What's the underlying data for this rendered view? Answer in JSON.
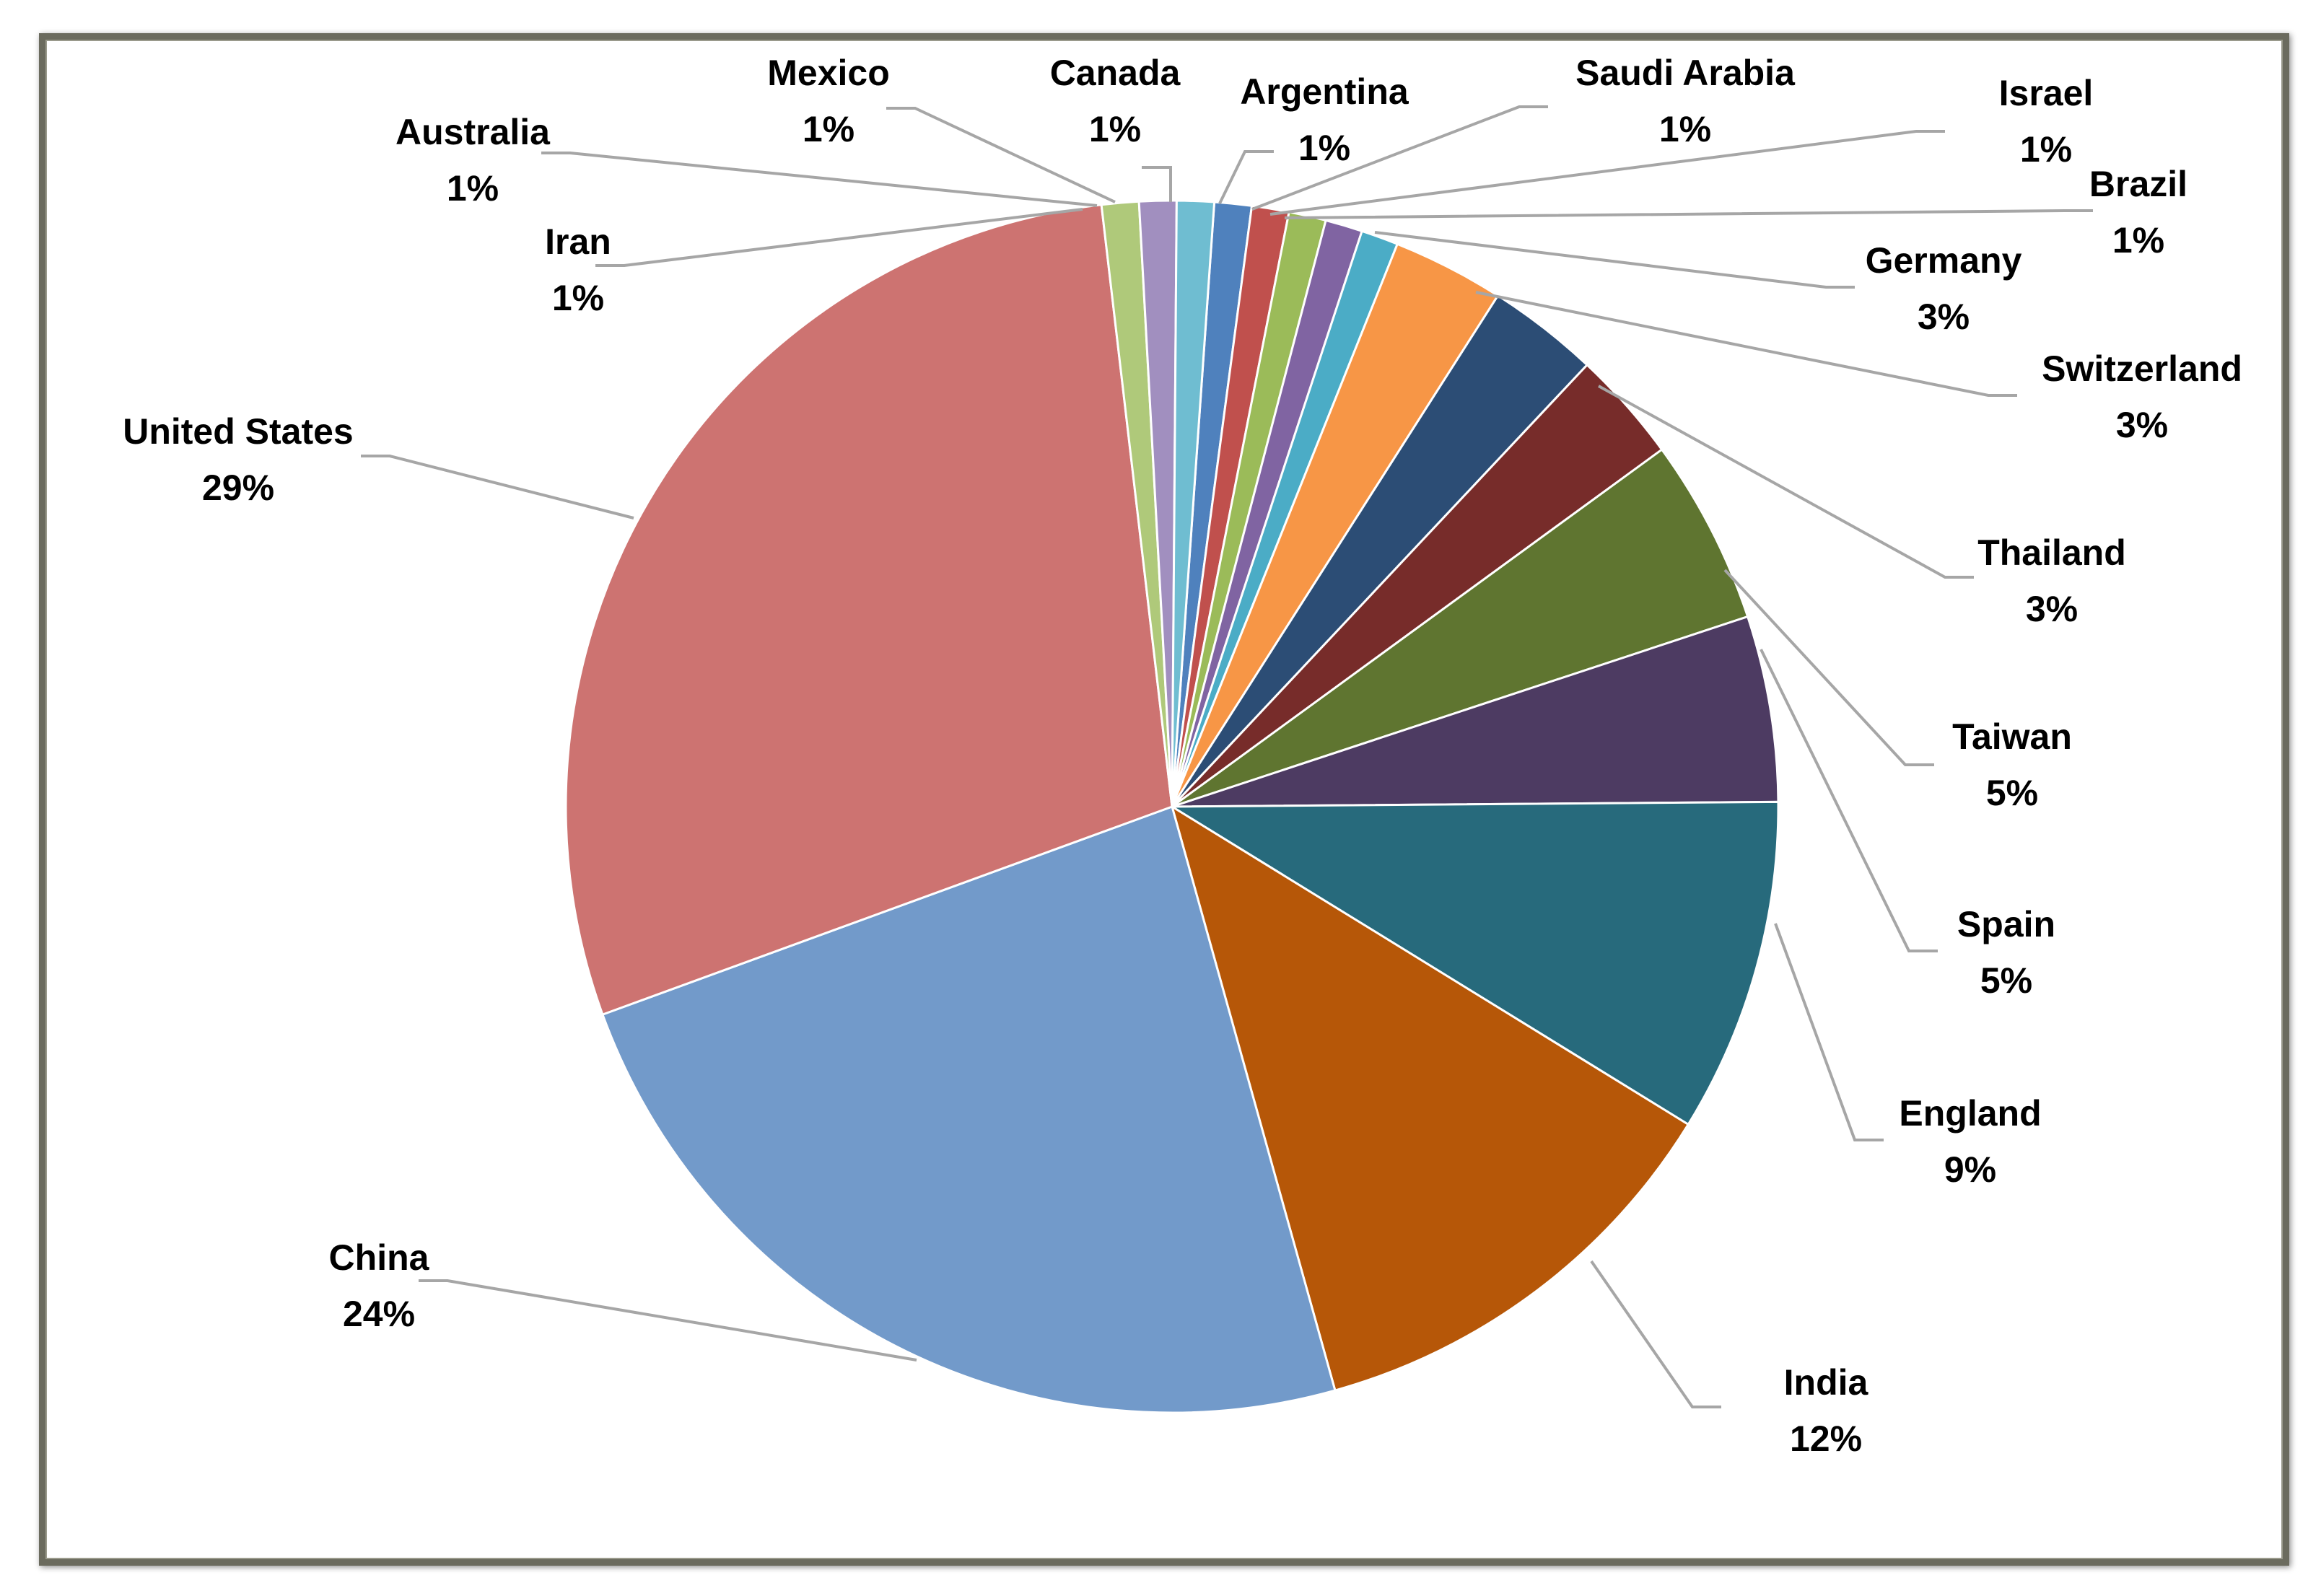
{
  "chart_data": {
    "type": "pie",
    "title": "",
    "slices": [
      {
        "label": "Canada",
        "value": 1,
        "value_label": "1%",
        "color": "#4f81bd"
      },
      {
        "label": "Argentina",
        "value": 1,
        "value_label": "1%",
        "color": "#c0504d"
      },
      {
        "label": "Saudi Arabia",
        "value": 1,
        "value_label": "1%",
        "color": "#9bbb59"
      },
      {
        "label": "Israel",
        "value": 1,
        "value_label": "1%",
        "color": "#8064a2"
      },
      {
        "label": "Brazil",
        "value": 1,
        "value_label": "1%",
        "color": "#4bacc6"
      },
      {
        "label": "Germany",
        "value": 3,
        "value_label": "3%",
        "color": "#f79646"
      },
      {
        "label": "Switzerland",
        "value": 3,
        "value_label": "3%",
        "color": "#2c4d75"
      },
      {
        "label": "Thailand",
        "value": 3,
        "value_label": "3%",
        "color": "#772c2a"
      },
      {
        "label": "Taiwan",
        "value": 5,
        "value_label": "5%",
        "color": "#5f7530"
      },
      {
        "label": "Spain",
        "value": 5,
        "value_label": "5%",
        "color": "#4d3b62"
      },
      {
        "label": "England",
        "value": 9,
        "value_label": "9%",
        "color": "#276a7c"
      },
      {
        "label": "India",
        "value": 12,
        "value_label": "12%",
        "color": "#b65708"
      },
      {
        "label": "China",
        "value": 24,
        "value_label": "24%",
        "color": "#729aca"
      },
      {
        "label": "United States",
        "value": 29,
        "value_label": "29%",
        "color": "#cd7371"
      },
      {
        "label": "Iran",
        "value": 1,
        "value_label": "1%",
        "color": "#afc97a"
      },
      {
        "label": "Australia",
        "value": 1,
        "value_label": "1%",
        "color": "#a18fbf"
      },
      {
        "label": "Mexico",
        "value": 1,
        "value_label": "1%",
        "color": "#6fbdd1"
      }
    ],
    "start_angle_deg": 0,
    "direction": "clockwise",
    "legend": "none",
    "data_labels": "outside with leader lines"
  }
}
